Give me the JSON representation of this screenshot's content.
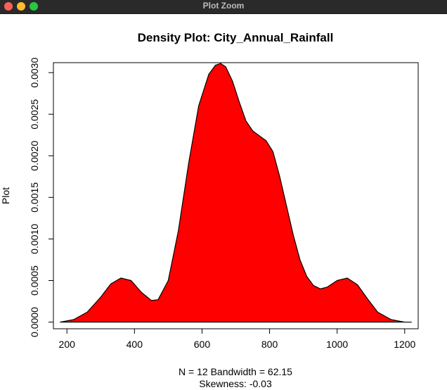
{
  "window": {
    "title": "Plot Zoom"
  },
  "chart_data": {
    "type": "area",
    "title": "Density Plot: City_Annual_Rainfall",
    "ylabel": "Plot",
    "xlabel_lines": [
      "N = 12   Bandwidth = 62.15",
      "Skewness: -0.03"
    ],
    "xlim": [
      160,
      1240
    ],
    "ylim": [
      -8e-05,
      0.00312
    ],
    "x_ticks": [
      200,
      400,
      600,
      800,
      1000,
      1200
    ],
    "y_ticks": [
      0.0,
      0.0005,
      0.001,
      0.0015,
      0.002,
      0.0025,
      0.003
    ],
    "y_tick_labels": [
      "0.0000",
      "0.0005",
      "0.0010",
      "0.0015",
      "0.0020",
      "0.0025",
      "0.0030"
    ],
    "series": [
      {
        "fill_color": "#ff0000",
        "line_color": "#000000",
        "x": [
          180,
          220,
          260,
          300,
          330,
          360,
          390,
          420,
          450,
          470,
          500,
          530,
          560,
          590,
          620,
          640,
          655,
          670,
          690,
          710,
          730,
          750,
          770,
          790,
          810,
          830,
          850,
          870,
          890,
          910,
          930,
          950,
          970,
          1000,
          1030,
          1060,
          1090,
          1120,
          1160,
          1200,
          1220
        ],
        "y": [
          0.0,
          3e-05,
          0.00012,
          0.0003,
          0.00046,
          0.00053,
          0.0005,
          0.00036,
          0.00026,
          0.00027,
          0.0005,
          0.0011,
          0.0019,
          0.0026,
          0.00298,
          0.00309,
          0.00311,
          0.00307,
          0.0029,
          0.00265,
          0.00242,
          0.0023,
          0.00224,
          0.00218,
          0.00205,
          0.00175,
          0.0014,
          0.00105,
          0.00075,
          0.00055,
          0.00044,
          0.0004,
          0.00042,
          0.0005,
          0.00053,
          0.00045,
          0.00028,
          0.00012,
          3e-05,
          0.0,
          0.0
        ]
      }
    ],
    "grid": false,
    "legend": "none"
  }
}
